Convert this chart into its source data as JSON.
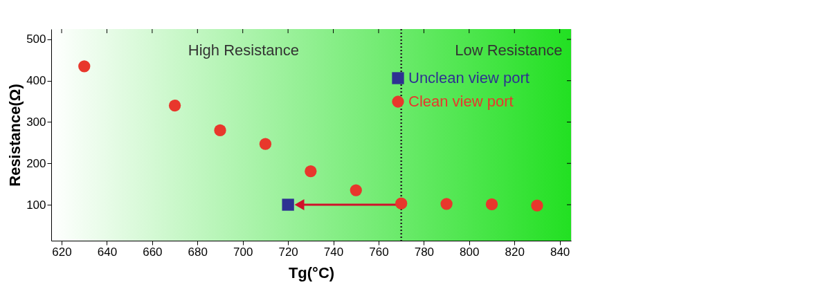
{
  "chart_data": {
    "type": "scatter",
    "xlabel": "Tg(°C)",
    "ylabel": "Resistance(Ω)",
    "xlim": [
      615.4,
      845
    ],
    "xticks": [
      620,
      640,
      660,
      680,
      700,
      720,
      740,
      760,
      780,
      800,
      820,
      840
    ],
    "ylim": [
      13,
      525
    ],
    "yticks": [
      100,
      200,
      300,
      400,
      500
    ],
    "series": [
      {
        "name": "Unclean view port",
        "color": "#2e3192",
        "marker": "square",
        "x": [
          720
        ],
        "values": [
          100
        ]
      },
      {
        "name": "Clean view port",
        "color": "#e8372c",
        "marker": "circle",
        "x": [
          630,
          670,
          690,
          710,
          730,
          750,
          770,
          790,
          810,
          830
        ],
        "values": [
          435,
          340,
          280,
          247,
          181,
          135,
          103,
          102,
          101,
          98
        ]
      }
    ],
    "ref_lines": [
      {
        "axis": "x",
        "value": 770,
        "line_style": "dotted",
        "color": "#222222"
      }
    ],
    "annotations": [
      "High Resistance",
      "Low Resistance"
    ],
    "legend": "top right",
    "grid": false
  }
}
